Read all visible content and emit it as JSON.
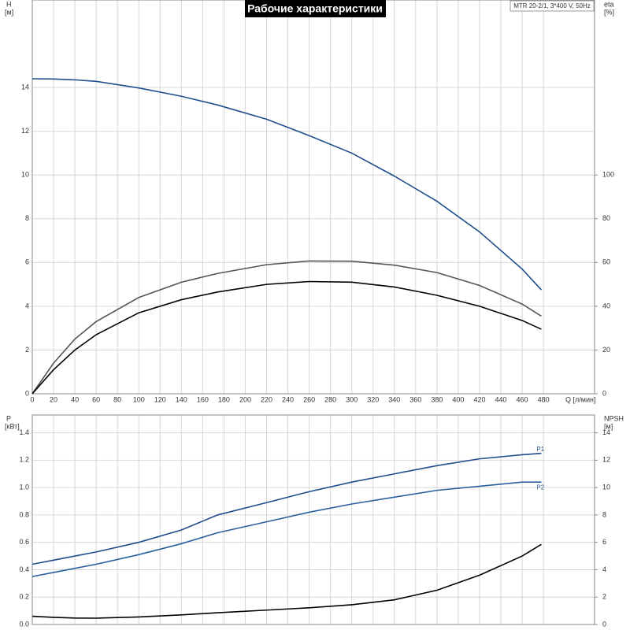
{
  "chart_data": [
    {
      "type": "line",
      "title": "Рабочие характеристики",
      "subtitle": "MTR 20-2/1, 3*400 V, 50Hz",
      "y_label": "H",
      "y_unit": "[м]",
      "y2_label": "eta",
      "y2_unit": "[%]",
      "x_label": "Q [л/мин]",
      "x": [
        0,
        20,
        40,
        60,
        100,
        140,
        174,
        220,
        260,
        300,
        340,
        380,
        420,
        460,
        478
      ],
      "xlim": [
        0,
        528
      ],
      "xticks": [
        0,
        20,
        40,
        60,
        80,
        100,
        120,
        140,
        160,
        180,
        200,
        220,
        240,
        260,
        280,
        300,
        320,
        340,
        360,
        380,
        400,
        420,
        440,
        460,
        480
      ],
      "ylim": [
        0,
        18
      ],
      "yticks": [
        0,
        2,
        4,
        6,
        8,
        10,
        12,
        14
      ],
      "y2lim": [
        0,
        180
      ],
      "y2ticks": [
        0,
        20,
        40,
        60,
        80,
        100
      ],
      "grid": true,
      "series": [
        {
          "color": "#1f4e8c",
          "values": [
            14.4,
            14.39,
            14.35,
            14.28,
            13.98,
            13.6,
            13.2,
            12.55,
            11.8,
            11.0,
            9.95,
            8.8,
            7.4,
            5.7,
            4.75
          ]
        },
        {
          "color": "#555555",
          "axis": "y2",
          "values": [
            0,
            14,
            25,
            33,
            44,
            51,
            55,
            59,
            60.7,
            60.6,
            58.8,
            55.4,
            49.5,
            41,
            35.5
          ]
        },
        {
          "color": "#000000",
          "axis": "y2",
          "values": [
            0,
            11,
            20,
            27,
            37,
            43,
            46.5,
            50,
            51.3,
            51,
            48.8,
            45,
            40,
            33.5,
            29.5
          ]
        }
      ]
    },
    {
      "type": "line",
      "y_label": "P",
      "y_unit": "[кВт]",
      "y2_label": "NPSH",
      "y2_unit": "[м]",
      "x": [
        0,
        20,
        40,
        60,
        100,
        140,
        174,
        220,
        260,
        300,
        340,
        380,
        420,
        460,
        478
      ],
      "xlim": [
        0,
        528
      ],
      "ylim": [
        0,
        1.53
      ],
      "yticks": [
        {
          "value": 0,
          "label": "0.0"
        },
        0.2,
        0.4,
        0.6,
        0.8,
        {
          "value": 1,
          "label": "1.0"
        },
        1.2,
        1.4
      ],
      "y2lim": [
        0,
        15.3
      ],
      "y2ticks": [
        0,
        2,
        4,
        6,
        8,
        10,
        12,
        14
      ],
      "grid": true,
      "series": [
        {
          "name": "P1",
          "color": "#1f4e8c",
          "values": [
            0.44,
            0.47,
            0.5,
            0.53,
            0.6,
            0.69,
            0.8,
            0.89,
            0.97,
            1.04,
            1.1,
            1.16,
            1.21,
            1.24,
            1.25
          ]
        },
        {
          "name": "P2",
          "color": "#2a5f9e",
          "values": [
            0.35,
            0.38,
            0.41,
            0.44,
            0.51,
            0.59,
            0.67,
            0.75,
            0.82,
            0.88,
            0.93,
            0.98,
            1.01,
            1.04,
            1.04
          ]
        },
        {
          "color": "#000000",
          "axis": "y2",
          "values": [
            0.6,
            0.52,
            0.47,
            0.46,
            0.55,
            0.7,
            0.86,
            1.05,
            1.22,
            1.44,
            1.8,
            2.5,
            3.6,
            5.0,
            5.85
          ]
        }
      ]
    }
  ]
}
